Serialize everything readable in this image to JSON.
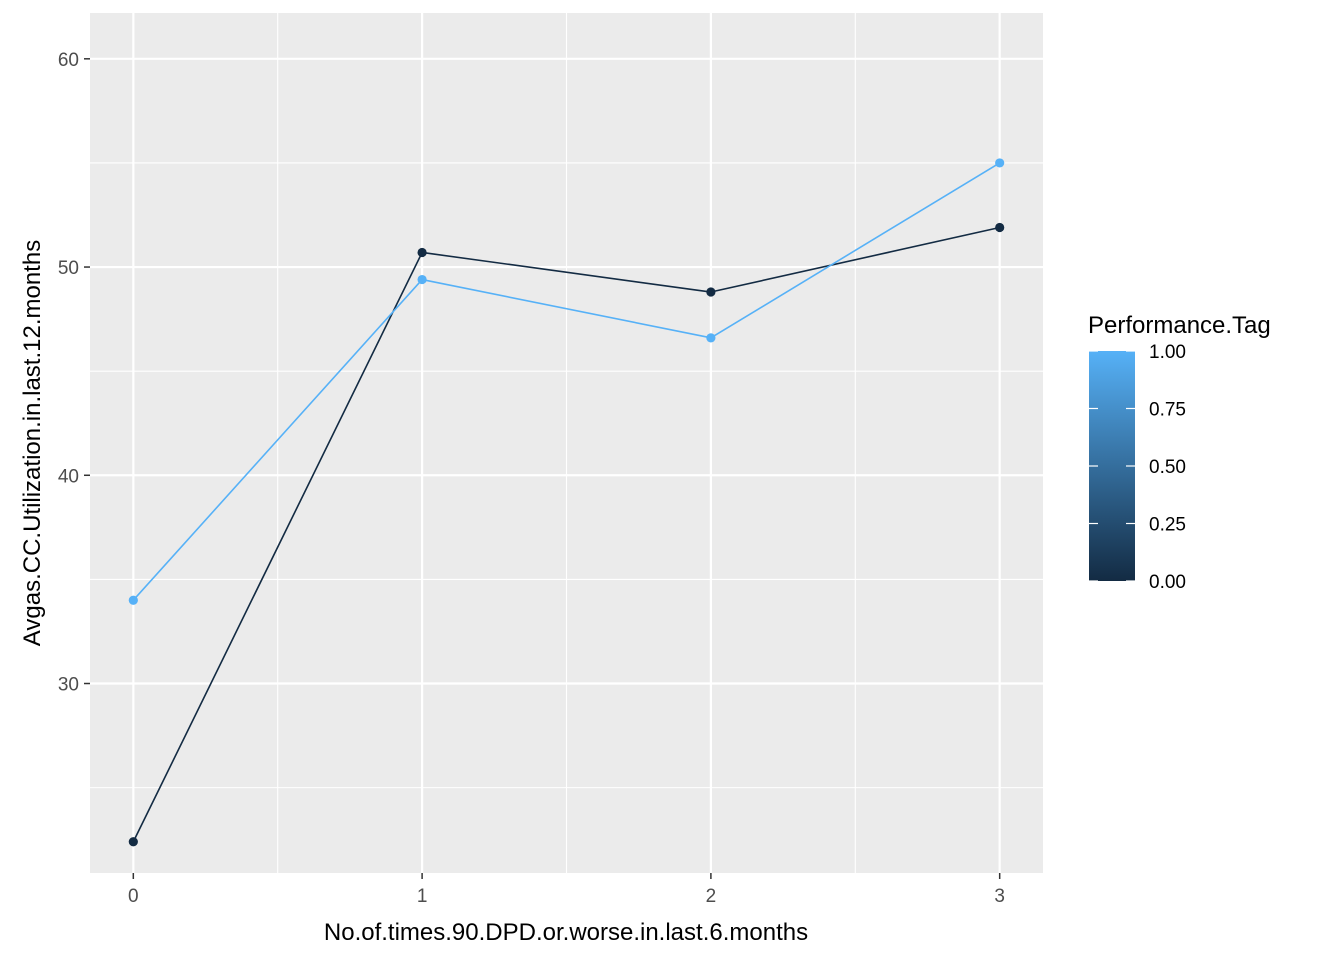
{
  "chart_data": {
    "type": "line",
    "x": [
      0,
      1,
      2,
      3
    ],
    "xlabel": "No.of.times.90.DPD.or.worse.in.last.6.months",
    "ylabel": "Avgas.CC.Utilization.in.last.12.months",
    "xlim": [
      -0.15,
      3.15
    ],
    "ylim": [
      20.9,
      62.2
    ],
    "x_ticks": [
      "0",
      "1",
      "2",
      "3"
    ],
    "y_ticks": [
      "30",
      "40",
      "50",
      "60"
    ],
    "grid": true,
    "background": "#ebebeb",
    "series": [
      {
        "tag": 0,
        "color": "#132b43",
        "values": [
          22.4,
          50.7,
          48.8,
          51.9
        ]
      },
      {
        "tag": 1,
        "color": "#56b1f7",
        "values": [
          34.0,
          49.4,
          46.6,
          55.0
        ]
      }
    ],
    "legend": {
      "title": "Performance.Tag",
      "position": "right",
      "gradient": [
        "#132b43",
        "#56b1f7"
      ],
      "breaks": [
        {
          "value": 1.0,
          "label": "1.00"
        },
        {
          "value": 0.75,
          "label": "0.75"
        },
        {
          "value": 0.5,
          "label": "0.50"
        },
        {
          "value": 0.25,
          "label": "0.25"
        },
        {
          "value": 0.0,
          "label": "0.00"
        }
      ]
    }
  }
}
